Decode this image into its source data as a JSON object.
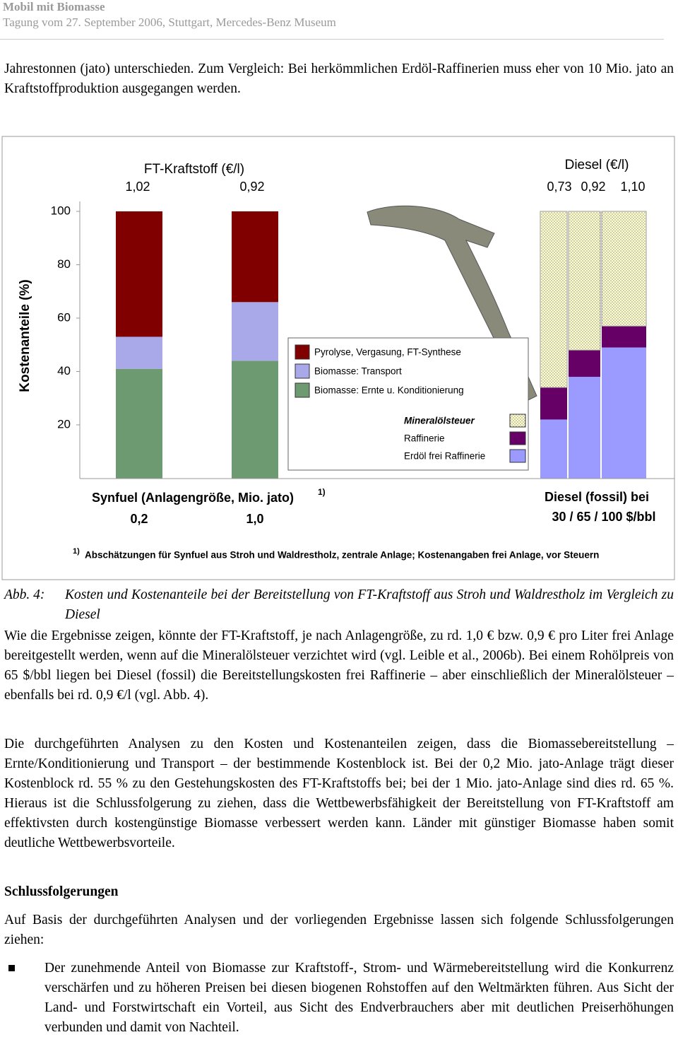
{
  "header": {
    "title": "Mobil mit Biomasse",
    "subtitle": "Tagung vom 27. September 2006, Stuttgart, Mercedes-Benz Museum"
  },
  "intro": "Jahrestonnen (jato) unterschieden. Zum Vergleich: Bei herkömmlichen Erdöl-Raffinerien muss eher von 10 Mio. jato an Kraftstoffproduktion ausgegangen werden.",
  "chart_data": {
    "type": "stacked_bar",
    "y_label": "Kostenanteile (%)",
    "ylim": [
      0,
      100
    ],
    "yticks": [
      20,
      40,
      60,
      80,
      100
    ],
    "group_titles": [
      "FT-Kraftstoff (€/l)",
      "Diesel (€/l)"
    ],
    "top_labels": [
      "1,02",
      "0,92",
      "0,73",
      "0,92",
      "1,10"
    ],
    "categories": [
      "0,2",
      "1,0",
      null,
      null,
      null
    ],
    "group_labels": [
      "Synfuel (Anlagengröße, Mio. jato)",
      "Diesel (fossil) bei",
      "30 / 65 / 100 $/bbl"
    ],
    "footnote_mark": "1)",
    "footnote": "Abschätzungen für Synfuel aus Stroh und Waldrestholz, zentrale Anlage; Kostenangaben frei Anlage, vor Steuern",
    "series": [
      {
        "name": "Biomasse: Ernte u. Konditionierung",
        "color": "#6e9a72",
        "values": [
          41,
          44,
          null,
          null,
          null
        ]
      },
      {
        "name": "Biomasse: Transport",
        "color": "#a9a9ea",
        "values": [
          12,
          22,
          null,
          null,
          null
        ]
      },
      {
        "name": "Pyrolyse, Vergasung, FT-Synthese",
        "color": "#800000",
        "values": [
          47,
          34,
          null,
          null,
          null
        ]
      },
      {
        "name": "Erdöl frei Raffinerie",
        "color": "#9a9aff",
        "values": [
          null,
          null,
          22,
          38,
          49
        ]
      },
      {
        "name": "Raffinerie",
        "color": "#660066",
        "values": [
          null,
          null,
          12,
          10,
          8
        ]
      },
      {
        "name": "Mineralölsteuer",
        "color": "#ffffcc",
        "pattern": "dotted",
        "values": [
          null,
          null,
          66,
          52,
          43
        ]
      }
    ]
  },
  "figure_caption": {
    "label": "Abb. 4:",
    "text": "Kosten und Kostenanteile bei der Bereitstellung von FT-Kraftstoff aus Stroh und Waldrestholz im Vergleich zu Diesel"
  },
  "paragraphs": [
    "Wie die Ergebnisse zeigen, könnte der FT-Kraftstoff, je nach Anlagengröße, zu rd. 1,0 € bzw. 0,9 € pro Liter frei Anlage bereitgestellt werden, wenn auf die Mineralölsteuer verzichtet wird (vgl. Leible et al., 2006b). Bei einem Rohölpreis von 65 $/bbl liegen bei Diesel (fossil) die Bereitstellungskosten frei Raffinerie – aber einschließlich der Mineralölsteuer – ebenfalls bei rd. 0,9 €/l (vgl. Abb. 4).",
    "Die durchgeführten Analysen zu den Kosten und Kostenanteilen zeigen, dass die Biomassebereitstellung – Ernte/Konditionierung und Transport – der bestimmende Kostenblock ist. Bei der 0,2 Mio. jato-Anlage trägt dieser Kostenblock rd. 55 % zu den Gestehungskosten des FT-Kraftstoffs bei; bei der 1 Mio. jato-Anlage sind dies rd. 65 %. Hieraus ist die Schlussfolgerung zu ziehen, dass die Wettbewerbsfähigkeit der Bereitstellung von FT-Kraftstoff am effektivsten durch kostengünstige Biomasse verbessert werden kann. Länder mit günstiger Biomasse haben somit deutliche Wettbewerbsvorteile."
  ],
  "heading": "Schlussfolgerungen",
  "conclusion_intro": "Auf Basis der durchgeführten Analysen und der vorliegenden Ergebnisse lassen sich folgende Schlussfolgerungen ziehen:",
  "bullets": [
    "Der zunehmende Anteil von Biomasse zur Kraftstoff-, Strom- und Wärmebereitstellung wird die Konkurrenz verschärfen und zu höheren Preisen bei diesen biogenen Rohstoffen auf den Weltmärkten führen. Aus Sicht der Land- und Forstwirtschaft ein Vorteil, aus Sicht des Endverbrauchers aber mit deutlichen Preiserhöhungen verbunden und damit von Nachteil."
  ]
}
